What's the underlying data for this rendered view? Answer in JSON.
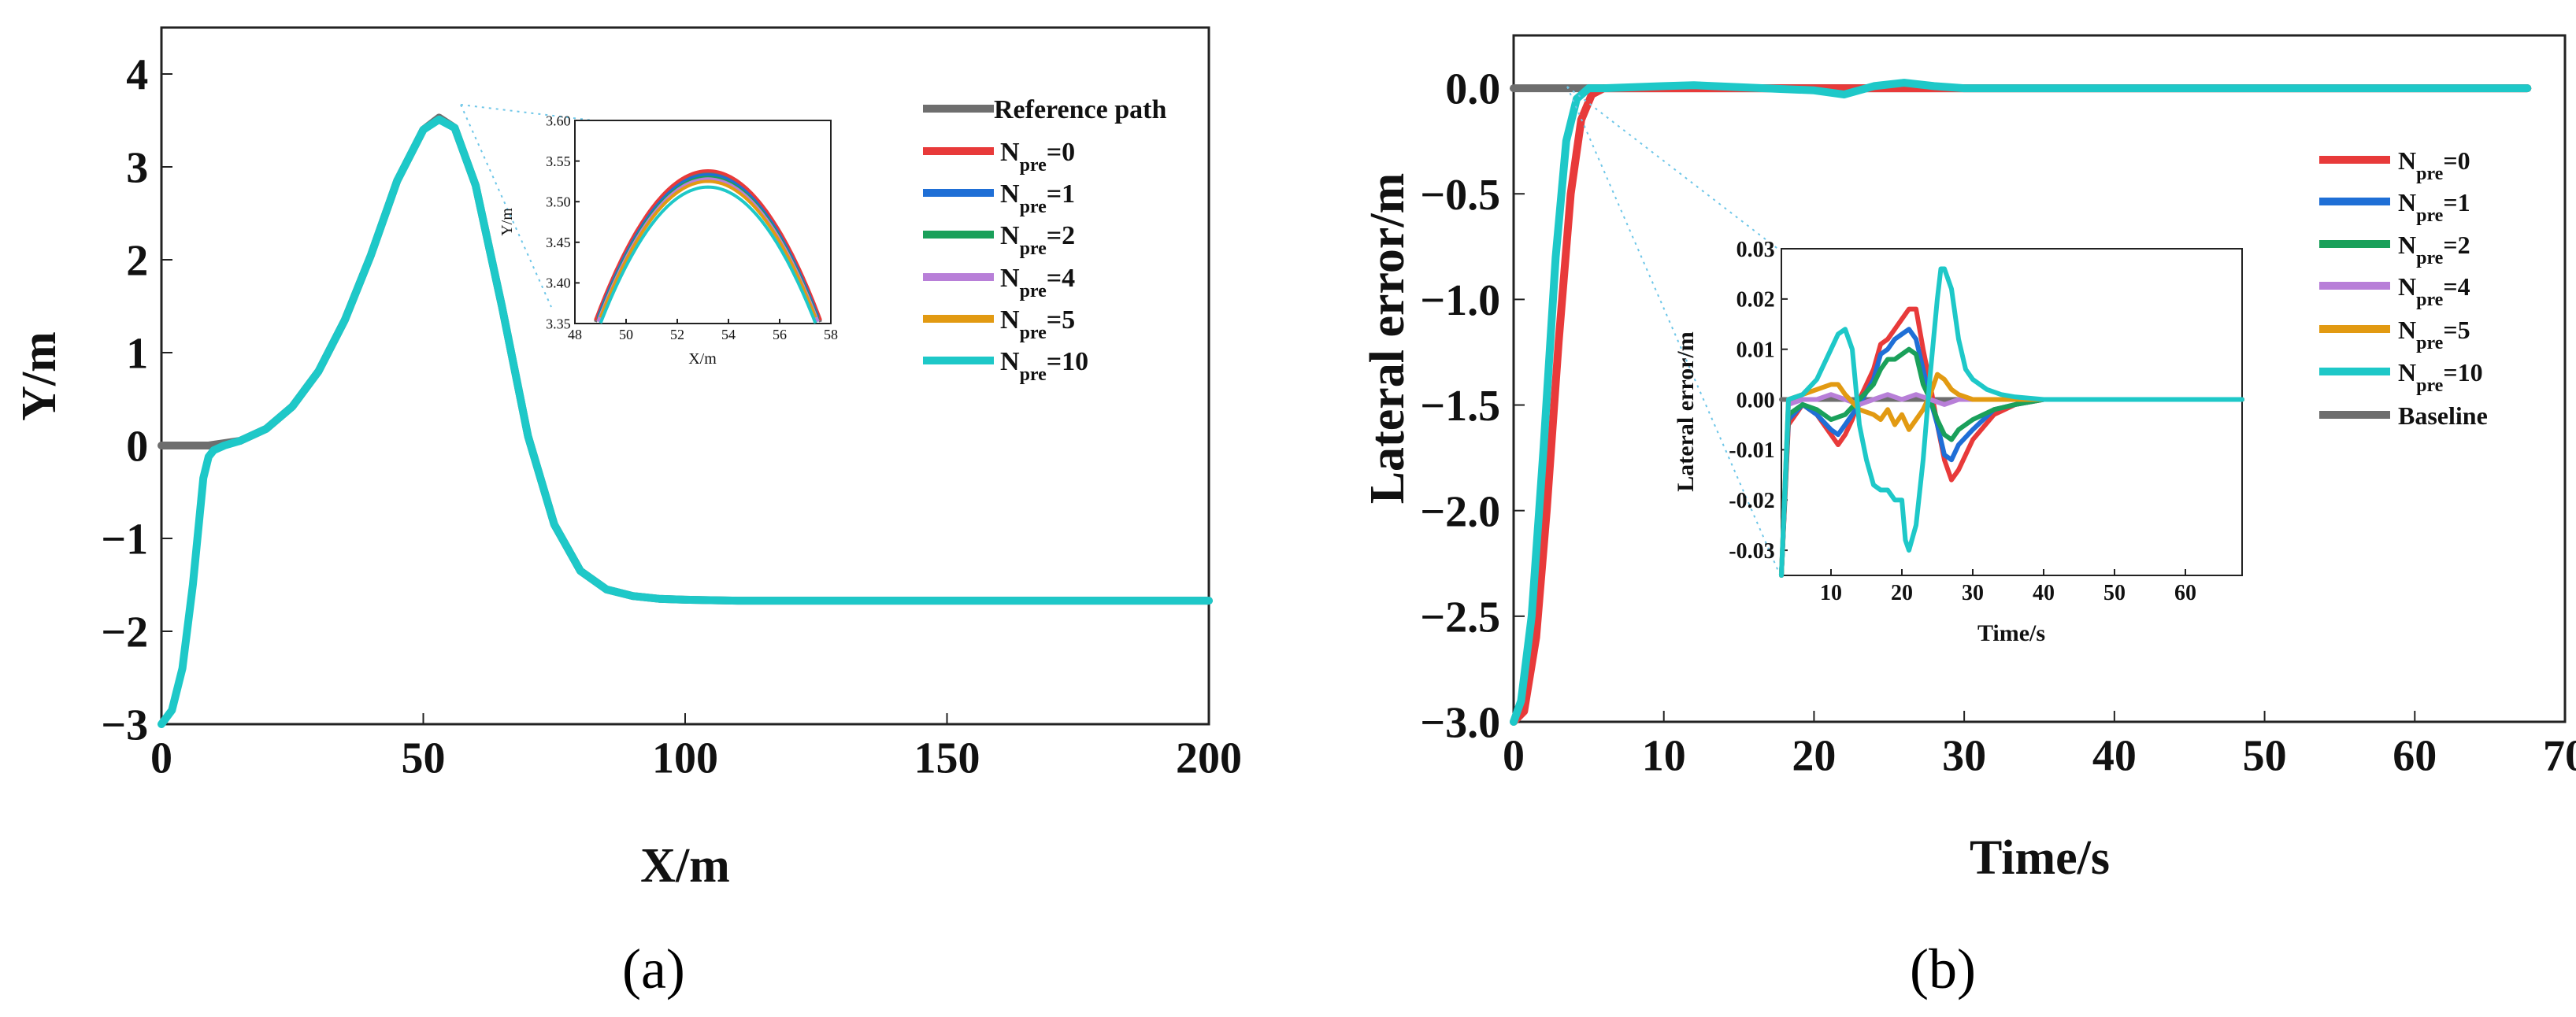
{
  "figure": {
    "panel_a_label": "(a)",
    "panel_b_label": "(b)"
  },
  "chart_data": [
    {
      "id": "a",
      "type": "line",
      "xlabel": "X/m",
      "ylabel": "Y/m",
      "xlim": [
        0,
        200
      ],
      "ylim": [
        -3,
        4.5
      ],
      "xticks": [
        0,
        50,
        100,
        150,
        200
      ],
      "yticks": [
        -3,
        -2,
        -1,
        0,
        1,
        2,
        3,
        4
      ],
      "xtick_labels": [
        "0",
        "50",
        "100",
        "150",
        "200"
      ],
      "ytick_labels": [
        "−3",
        "−2",
        "−1",
        "0",
        "1",
        "2",
        "3",
        "4"
      ],
      "legend": [
        "Reference path",
        "N_pre=0",
        "N_pre=1",
        "N_pre=2",
        "N_pre=4",
        "N_pre=5",
        "N_pre=10"
      ],
      "legend_placement": "top-right",
      "series": [
        {
          "name": "Reference path",
          "color": "#6e6e6e",
          "x": [
            0,
            5,
            9,
            15,
            20,
            25,
            30,
            35,
            40,
            45,
            50,
            53,
            56,
            60,
            65,
            70,
            75,
            80,
            85,
            90,
            95,
            100,
            110,
            120,
            150,
            200
          ],
          "y": [
            0,
            0,
            0,
            0.05,
            0.18,
            0.42,
            0.8,
            1.35,
            2.05,
            2.85,
            3.4,
            3.53,
            3.42,
            2.8,
            1.5,
            0.1,
            -0.85,
            -1.35,
            -1.55,
            -1.62,
            -1.65,
            -1.66,
            -1.67,
            -1.67,
            -1.67,
            -1.67
          ]
        },
        {
          "name": "N_pre=10",
          "color": "#1ec8c8",
          "x": [
            0,
            2,
            4,
            6,
            8,
            9,
            10,
            12,
            15,
            20,
            25,
            30,
            35,
            40,
            45,
            50,
            53,
            56,
            60,
            65,
            70,
            75,
            80,
            85,
            90,
            95,
            100,
            110,
            120,
            150,
            200
          ],
          "y": [
            -3,
            -2.85,
            -2.4,
            -1.5,
            -0.35,
            -0.12,
            -0.05,
            0,
            0.05,
            0.18,
            0.42,
            0.8,
            1.35,
            2.05,
            2.85,
            3.4,
            3.51,
            3.42,
            2.8,
            1.5,
            0.1,
            -0.85,
            -1.35,
            -1.55,
            -1.62,
            -1.65,
            -1.66,
            -1.67,
            -1.67,
            -1.67,
            -1.67
          ]
        }
      ],
      "inset": {
        "xlabel": "X/m",
        "ylabel": "Y/m",
        "xlim": [
          48,
          58
        ],
        "ylim": [
          3.35,
          3.6
        ],
        "xticks": [
          48,
          50,
          52,
          54,
          56,
          58
        ],
        "yticks": [
          3.35,
          3.4,
          3.45,
          3.5,
          3.55,
          3.6
        ],
        "xtick_labels": [
          "48",
          "50",
          "52",
          "54",
          "56",
          "58"
        ],
        "ytick_labels": [
          "3.35",
          "3.40",
          "3.45",
          "3.50",
          "3.55",
          "3.60"
        ],
        "vertex_x": 53.2,
        "width_factor": 0.0095,
        "peaks": [
          {
            "name": "Reference path",
            "color": "#6e6e6e",
            "peak": 3.536
          },
          {
            "name": "N_pre=0",
            "color": "#e83a3a",
            "peak": 3.538
          },
          {
            "name": "N_pre=1",
            "color": "#1f6fd6",
            "peak": 3.533
          },
          {
            "name": "N_pre=2",
            "color": "#1aa05a",
            "peak": 3.53
          },
          {
            "name": "N_pre=4",
            "color": "#b87fd8",
            "peak": 3.528
          },
          {
            "name": "N_pre=5",
            "color": "#e29a12",
            "peak": 3.525
          },
          {
            "name": "N_pre=10",
            "color": "#1ec8c8",
            "peak": 3.518
          }
        ]
      }
    },
    {
      "id": "b",
      "type": "line",
      "xlabel": "Time/s",
      "ylabel": "Lateral error/m",
      "xlim": [
        0,
        70
      ],
      "ylim": [
        -3,
        0.25
      ],
      "xticks": [
        0,
        10,
        20,
        30,
        40,
        50,
        60,
        70
      ],
      "yticks": [
        0,
        -0.5,
        -1,
        -1.5,
        -2,
        -2.5,
        -3
      ],
      "xtick_labels": [
        "0",
        "10",
        "20",
        "30",
        "40",
        "50",
        "60",
        "70"
      ],
      "ytick_labels": [
        "0.0",
        "−0.5",
        "−1.0",
        "−1.5",
        "−2.0",
        "−2.5",
        "−3.0"
      ],
      "legend": [
        "N_pre=0",
        "N_pre=1",
        "N_pre=2",
        "N_pre=4",
        "N_pre=5",
        "N_pre=10",
        "Baseline"
      ],
      "legend_placement": "right",
      "series": [
        {
          "name": "Baseline",
          "color": "#6e6e6e",
          "x": [
            0,
            3,
            10,
            20,
            30,
            40,
            67.5
          ],
          "y": [
            0,
            0,
            0,
            0,
            0,
            0,
            0
          ]
        },
        {
          "name": "N_pre=0",
          "color": "#e83a3a",
          "x": [
            0,
            0.7,
            1.5,
            2.2,
            3,
            3.8,
            4.5,
            5.2,
            6,
            10,
            20,
            30,
            40,
            67.5
          ],
          "y": [
            -3,
            -2.95,
            -2.6,
            -2.0,
            -1.2,
            -0.5,
            -0.15,
            -0.03,
            0,
            0,
            0,
            0,
            0,
            0
          ]
        },
        {
          "name": "N_pre=10",
          "color": "#1ec8c8",
          "x": [
            0,
            0.5,
            1.2,
            2,
            2.8,
            3.5,
            4.2,
            5,
            6,
            10,
            12,
            15,
            20,
            22,
            24,
            26,
            28,
            30,
            35,
            40,
            67.5
          ],
          "y": [
            -3,
            -2.9,
            -2.5,
            -1.7,
            -0.8,
            -0.25,
            -0.05,
            0,
            0,
            0.01,
            0.014,
            0.005,
            -0.01,
            -0.03,
            0.01,
            0.026,
            0.01,
            0,
            0,
            0,
            0
          ]
        }
      ],
      "inset": {
        "xlabel": "Time/s",
        "ylabel": "Lateral error/m",
        "xlim": [
          3,
          68
        ],
        "ylim": [
          -0.035,
          0.03
        ],
        "xticks": [
          10,
          20,
          30,
          40,
          50,
          60
        ],
        "yticks": [
          0.03,
          0.02,
          0.01,
          0,
          -0.01,
          -0.02,
          -0.03
        ],
        "xtick_labels": [
          "10",
          "20",
          "30",
          "40",
          "50",
          "60"
        ],
        "ytick_labels": [
          "0.03",
          "0.02",
          "0.01",
          "0.00",
          "-0.01",
          "-0.02",
          "-0.03"
        ],
        "series": [
          {
            "name": "Baseline",
            "color": "#6e6e6e",
            "x": [
              3,
              68
            ],
            "y": [
              0,
              0
            ]
          },
          {
            "name": "N_pre=0",
            "color": "#e83a3a",
            "x": [
              3,
              4,
              6,
              8,
              10,
              11,
              12,
              13,
              14,
              16,
              17,
              18,
              19,
              20,
              21,
              22,
              23,
              24,
              25,
              26,
              27,
              28,
              30,
              33,
              36,
              40,
              68
            ],
            "y": [
              -0.035,
              -0.005,
              -0.001,
              -0.003,
              -0.007,
              -0.009,
              -0.007,
              -0.004,
              0,
              0.006,
              0.011,
              0.012,
              0.014,
              0.016,
              0.018,
              0.018,
              0.01,
              0.003,
              -0.005,
              -0.012,
              -0.016,
              -0.014,
              -0.008,
              -0.003,
              -0.001,
              0,
              0
            ]
          },
          {
            "name": "N_pre=1",
            "color": "#1f6fd6",
            "x": [
              3,
              4,
              6,
              8,
              10,
              11,
              12,
              14,
              16,
              17,
              18,
              19,
              20,
              21,
              22,
              23,
              24,
              25,
              26,
              27,
              28,
              30,
              33,
              36,
              40,
              68
            ],
            "y": [
              -0.035,
              -0.004,
              -0.001,
              -0.003,
              -0.006,
              -0.007,
              -0.005,
              -0.001,
              0.004,
              0.009,
              0.01,
              0.012,
              0.013,
              0.014,
              0.012,
              0.006,
              0,
              -0.005,
              -0.011,
              -0.012,
              -0.009,
              -0.006,
              -0.002,
              -0.001,
              0,
              0
            ]
          },
          {
            "name": "N_pre=2",
            "color": "#1aa05a",
            "x": [
              3,
              4,
              6,
              8,
              10,
              12,
              14,
              16,
              17,
              18,
              19,
              20,
              21,
              22,
              23,
              24,
              25,
              26,
              27,
              28,
              30,
              33,
              36,
              40,
              68
            ],
            "y": [
              -0.035,
              -0.003,
              -0.001,
              -0.002,
              -0.004,
              -0.003,
              0,
              0.003,
              0.006,
              0.008,
              0.008,
              0.009,
              0.01,
              0.009,
              0.003,
              0,
              -0.004,
              -0.007,
              -0.008,
              -0.006,
              -0.004,
              -0.002,
              -0.001,
              0,
              0
            ]
          },
          {
            "name": "N_pre=4",
            "color": "#b87fd8",
            "x": [
              3,
              4,
              6,
              8,
              10,
              12,
              14,
              16,
              18,
              20,
              22,
              24,
              26,
              28,
              30,
              35,
              40,
              68
            ],
            "y": [
              -0.035,
              -0.001,
              0,
              0,
              0.001,
              0,
              -0.001,
              0,
              0.001,
              0,
              0.001,
              0,
              -0.001,
              0,
              0,
              0,
              0,
              0
            ]
          },
          {
            "name": "N_pre=5",
            "color": "#e29a12",
            "x": [
              3,
              4,
              6,
              8,
              10,
              11,
              12,
              14,
              16,
              17,
              18,
              19,
              20,
              21,
              22,
              23,
              24,
              25,
              26,
              27,
              28,
              30,
              33,
              36,
              40,
              68
            ],
            "y": [
              -0.035,
              0,
              0.001,
              0.002,
              0.003,
              0.003,
              0.001,
              -0.002,
              -0.003,
              -0.004,
              -0.002,
              -0.005,
              -0.003,
              -0.006,
              -0.004,
              -0.002,
              0.001,
              0.005,
              0.004,
              0.002,
              0.001,
              0,
              0,
              0,
              0,
              0
            ]
          },
          {
            "name": "N_pre=10",
            "color": "#1ec8c8",
            "x": [
              3,
              4,
              6,
              8,
              10,
              11,
              12,
              13,
              14,
              15,
              16,
              17,
              18,
              19,
              20,
              20.5,
              21,
              22,
              23,
              24,
              25,
              25.5,
              26,
              27,
              28,
              29,
              30,
              32,
              34,
              36,
              40,
              68
            ],
            "y": [
              -0.035,
              0,
              0.001,
              0.004,
              0.01,
              0.013,
              0.014,
              0.01,
              -0.005,
              -0.012,
              -0.017,
              -0.018,
              -0.018,
              -0.02,
              -0.02,
              -0.028,
              -0.03,
              -0.025,
              -0.012,
              0.005,
              0.02,
              0.026,
              0.026,
              0.022,
              0.012,
              0.006,
              0.004,
              0.002,
              0.001,
              0.0005,
              0,
              0
            ]
          }
        ]
      }
    }
  ]
}
